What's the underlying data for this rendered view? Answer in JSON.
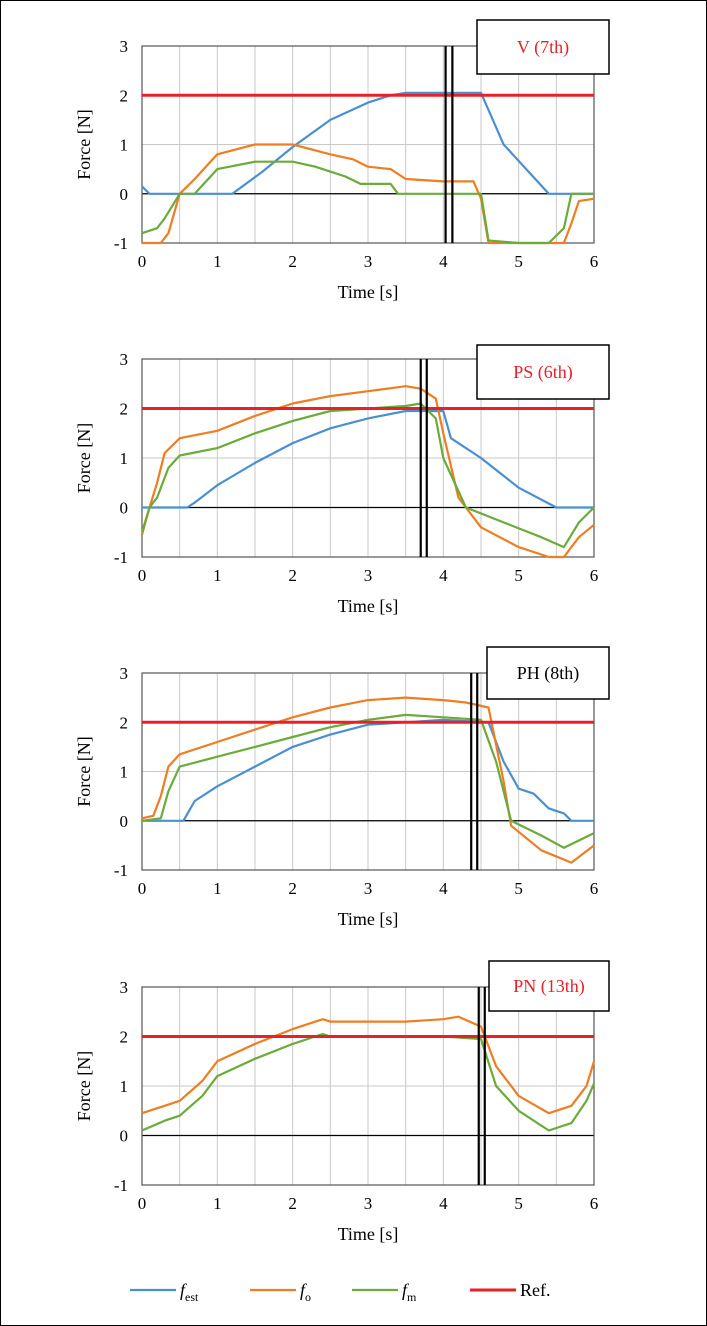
{
  "colors": {
    "f_est": "#4a90d0",
    "f_o": "#ef7d22",
    "f_m": "#6aab3a",
    "ref": "#e8202a",
    "title_red": "#e8202a",
    "title_black": "#000000"
  },
  "legend": [
    {
      "key": "f_est",
      "main": "f",
      "sub": "est"
    },
    {
      "key": "f_o",
      "main": "f",
      "sub": "o"
    },
    {
      "key": "f_m",
      "main": "f",
      "sub": "m"
    },
    {
      "key": "ref",
      "main": "Ref.",
      "sub": ""
    }
  ],
  "chart_data": [
    {
      "type": "line",
      "title": "V (7th)",
      "title_color": "red",
      "xlabel": "Time [s]",
      "ylabel": "Force [N]",
      "xlim": [
        0,
        6
      ],
      "ylim": [
        -1,
        3
      ],
      "xticks": [
        0,
        1,
        2,
        3,
        4,
        5,
        6
      ],
      "yticks": [
        -1,
        0,
        1,
        2,
        3
      ],
      "grid": true,
      "vlines": [
        4.03,
        4.12
      ],
      "series": [
        {
          "name": "f_est",
          "x": [
            0,
            0.1,
            0.2,
            1.2,
            1.6,
            2.0,
            2.5,
            3.0,
            3.3,
            3.5,
            4.0,
            4.5,
            4.8,
            5.1,
            5.4,
            6.0
          ],
          "y": [
            0.15,
            0.0,
            0.0,
            0.0,
            0.45,
            0.95,
            1.5,
            1.85,
            2.0,
            2.05,
            2.05,
            2.05,
            1.0,
            0.5,
            0.0,
            0.0
          ]
        },
        {
          "name": "f_o",
          "x": [
            0,
            0.1,
            0.25,
            0.35,
            0.5,
            0.7,
            1.0,
            1.5,
            2.0,
            2.5,
            2.8,
            3.0,
            3.3,
            3.5,
            4.0,
            4.4,
            4.5,
            4.6,
            5.0,
            5.4,
            5.6,
            5.7,
            5.8,
            6.0
          ],
          "y": [
            -1.0,
            -1.0,
            -1.0,
            -0.8,
            0.0,
            0.3,
            0.8,
            1.0,
            1.0,
            0.8,
            0.7,
            0.55,
            0.5,
            0.3,
            0.25,
            0.25,
            -0.1,
            -1.0,
            -1.0,
            -1.0,
            -1.0,
            -0.6,
            -0.15,
            -0.1
          ]
        },
        {
          "name": "f_m",
          "x": [
            0,
            0.2,
            0.3,
            0.5,
            0.7,
            1.0,
            1.5,
            2.0,
            2.3,
            2.7,
            2.9,
            3.0,
            3.3,
            3.4,
            4.0,
            4.5,
            4.6,
            5.0,
            5.4,
            5.6,
            5.7,
            6.0
          ],
          "y": [
            -0.8,
            -0.7,
            -0.5,
            0.0,
            0.0,
            0.5,
            0.65,
            0.65,
            0.55,
            0.35,
            0.2,
            0.2,
            0.2,
            0.0,
            0.0,
            0.0,
            -0.95,
            -1.0,
            -1.0,
            -0.7,
            0.0,
            0.0
          ]
        },
        {
          "name": "Ref.",
          "x": [
            0,
            6
          ],
          "y": [
            2,
            2
          ]
        }
      ]
    },
    {
      "type": "line",
      "title": "PS (6th)",
      "title_color": "red",
      "xlabel": "Time [s]",
      "ylabel": "Force [N]",
      "xlim": [
        0,
        6
      ],
      "ylim": [
        -1,
        3
      ],
      "xticks": [
        0,
        1,
        2,
        3,
        4,
        5,
        6
      ],
      "yticks": [
        -1,
        0,
        1,
        2,
        3
      ],
      "grid": true,
      "vlines": [
        3.7,
        3.78
      ],
      "series": [
        {
          "name": "f_est",
          "x": [
            0,
            0.6,
            0.7,
            1.0,
            1.5,
            2.0,
            2.5,
            3.0,
            3.5,
            4.0,
            4.1,
            4.5,
            5.0,
            5.5,
            6.0
          ],
          "y": [
            0.0,
            0.0,
            0.1,
            0.45,
            0.9,
            1.3,
            1.6,
            1.8,
            1.95,
            1.95,
            1.4,
            1.0,
            0.4,
            0.0,
            0.0
          ]
        },
        {
          "name": "f_o",
          "x": [
            0,
            0.1,
            0.2,
            0.3,
            0.5,
            1.0,
            1.5,
            2.0,
            2.5,
            3.0,
            3.5,
            3.7,
            3.9,
            4.0,
            4.2,
            4.5,
            5.0,
            5.4,
            5.6,
            5.8,
            6.0
          ],
          "y": [
            -0.55,
            0.0,
            0.5,
            1.1,
            1.4,
            1.55,
            1.85,
            2.1,
            2.25,
            2.35,
            2.45,
            2.4,
            2.2,
            1.5,
            0.2,
            -0.4,
            -0.8,
            -1.0,
            -1.0,
            -0.6,
            -0.35
          ]
        },
        {
          "name": "f_m",
          "x": [
            0,
            0.1,
            0.2,
            0.35,
            0.5,
            1.0,
            1.5,
            2.0,
            2.5,
            3.0,
            3.5,
            3.7,
            3.9,
            4.0,
            4.3,
            4.8,
            5.3,
            5.6,
            5.8,
            6.0
          ],
          "y": [
            -0.5,
            0.0,
            0.2,
            0.8,
            1.05,
            1.2,
            1.5,
            1.75,
            1.95,
            2.0,
            2.05,
            2.1,
            1.8,
            1.0,
            0.0,
            -0.3,
            -0.6,
            -0.8,
            -0.3,
            0.0
          ]
        },
        {
          "name": "Ref.",
          "x": [
            0,
            6
          ],
          "y": [
            2,
            2
          ]
        }
      ]
    },
    {
      "type": "line",
      "title": "PH (8th)",
      "title_color": "black",
      "xlabel": "Time [s]",
      "ylabel": "Force [N]",
      "xlim": [
        0,
        6
      ],
      "ylim": [
        -1,
        3
      ],
      "xticks": [
        0,
        1,
        2,
        3,
        4,
        5,
        6
      ],
      "yticks": [
        -1,
        0,
        1,
        2,
        3
      ],
      "grid": true,
      "vlines": [
        4.37,
        4.45
      ],
      "series": [
        {
          "name": "f_est",
          "x": [
            0,
            0.55,
            0.7,
            1.0,
            1.5,
            2.0,
            2.5,
            3.0,
            3.5,
            4.0,
            4.6,
            4.8,
            5.0,
            5.2,
            5.4,
            5.6,
            5.7,
            6.0
          ],
          "y": [
            0.0,
            0.0,
            0.4,
            0.7,
            1.1,
            1.5,
            1.75,
            1.95,
            2.0,
            2.05,
            2.0,
            1.2,
            0.65,
            0.55,
            0.25,
            0.15,
            0.0,
            0.0
          ]
        },
        {
          "name": "f_o",
          "x": [
            0,
            0.15,
            0.25,
            0.35,
            0.5,
            1.0,
            1.5,
            2.0,
            2.5,
            3.0,
            3.5,
            4.0,
            4.3,
            4.6,
            4.8,
            4.9,
            5.3,
            5.7,
            6.0
          ],
          "y": [
            0.05,
            0.1,
            0.5,
            1.1,
            1.35,
            1.6,
            1.85,
            2.1,
            2.3,
            2.45,
            2.5,
            2.45,
            2.4,
            2.3,
            0.8,
            -0.1,
            -0.6,
            -0.85,
            -0.5
          ]
        },
        {
          "name": "f_m",
          "x": [
            0,
            0.25,
            0.35,
            0.5,
            1.0,
            1.5,
            2.0,
            2.5,
            3.0,
            3.5,
            4.0,
            4.5,
            4.7,
            4.9,
            5.3,
            5.6,
            6.0
          ],
          "y": [
            0.0,
            0.05,
            0.6,
            1.1,
            1.3,
            1.5,
            1.7,
            1.9,
            2.05,
            2.15,
            2.1,
            2.05,
            1.2,
            0.0,
            -0.3,
            -0.55,
            -0.25
          ]
        },
        {
          "name": "Ref.",
          "x": [
            0,
            6
          ],
          "y": [
            2,
            2
          ]
        }
      ]
    },
    {
      "type": "line",
      "title": "PN (13th)",
      "title_color": "red",
      "xlabel": "Time [s]",
      "ylabel": "Force [N]",
      "xlim": [
        0,
        6
      ],
      "ylim": [
        -1,
        3
      ],
      "xticks": [
        0,
        1,
        2,
        3,
        4,
        5,
        6
      ],
      "yticks": [
        -1,
        0,
        1,
        2,
        3
      ],
      "grid": true,
      "vlines": [
        4.47,
        4.55
      ],
      "series": [
        {
          "name": "f_o",
          "x": [
            0,
            0.3,
            0.5,
            0.8,
            1.0,
            1.5,
            2.0,
            2.4,
            2.5,
            3.0,
            3.5,
            4.0,
            4.2,
            4.5,
            4.7,
            5.0,
            5.4,
            5.7,
            5.9,
            6.0
          ],
          "y": [
            0.45,
            0.6,
            0.7,
            1.1,
            1.5,
            1.85,
            2.15,
            2.35,
            2.3,
            2.3,
            2.3,
            2.35,
            2.4,
            2.2,
            1.4,
            0.8,
            0.45,
            0.6,
            1.0,
            1.5
          ]
        },
        {
          "name": "f_m",
          "x": [
            0,
            0.3,
            0.5,
            0.8,
            1.0,
            1.5,
            2.0,
            2.4,
            2.5,
            3.0,
            3.5,
            4.0,
            4.5,
            4.7,
            5.0,
            5.4,
            5.7,
            5.9,
            6.0
          ],
          "y": [
            0.1,
            0.3,
            0.4,
            0.8,
            1.2,
            1.55,
            1.85,
            2.05,
            2.0,
            2.0,
            2.0,
            2.0,
            1.95,
            1.0,
            0.5,
            0.1,
            0.25,
            0.7,
            1.05
          ]
        },
        {
          "name": "f_est",
          "x": [
            0,
            6
          ],
          "y": [
            2,
            2
          ]
        },
        {
          "name": "Ref.",
          "x": [
            0,
            6
          ],
          "y": [
            2,
            2
          ]
        }
      ]
    }
  ]
}
